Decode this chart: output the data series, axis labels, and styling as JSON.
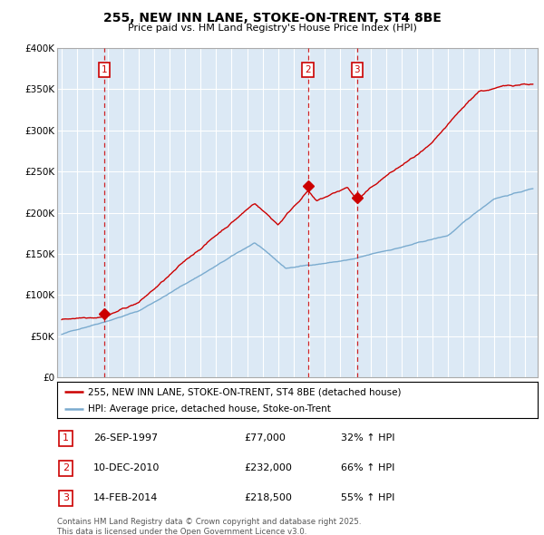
{
  "title": "255, NEW INN LANE, STOKE-ON-TRENT, ST4 8BE",
  "subtitle": "Price paid vs. HM Land Registry's House Price Index (HPI)",
  "red_label": "255, NEW INN LANE, STOKE-ON-TRENT, ST4 8BE (detached house)",
  "blue_label": "HPI: Average price, detached house, Stoke-on-Trent",
  "transactions": [
    {
      "num": 1,
      "date": "26-SEP-1997",
      "price": 77000,
      "hpi_pct": "32% ↑ HPI",
      "year": 1997.74
    },
    {
      "num": 2,
      "date": "10-DEC-2010",
      "price": 232000,
      "hpi_pct": "66% ↑ HPI",
      "year": 2010.94
    },
    {
      "num": 3,
      "date": "14-FEB-2014",
      "price": 218500,
      "hpi_pct": "55% ↑ HPI",
      "year": 2014.12
    }
  ],
  "footnote": "Contains HM Land Registry data © Crown copyright and database right 2025.\nThis data is licensed under the Open Government Licence v3.0.",
  "ylim": [
    0,
    400000
  ],
  "yticks": [
    0,
    50000,
    100000,
    150000,
    200000,
    250000,
    300000,
    350000,
    400000
  ],
  "xlim_start": 1994.7,
  "xlim_end": 2025.8,
  "red_color": "#cc0000",
  "blue_color": "#7aabcf",
  "plot_bg_color": "#dce9f5",
  "bg_color": "#ffffff",
  "grid_color": "#ffffff"
}
